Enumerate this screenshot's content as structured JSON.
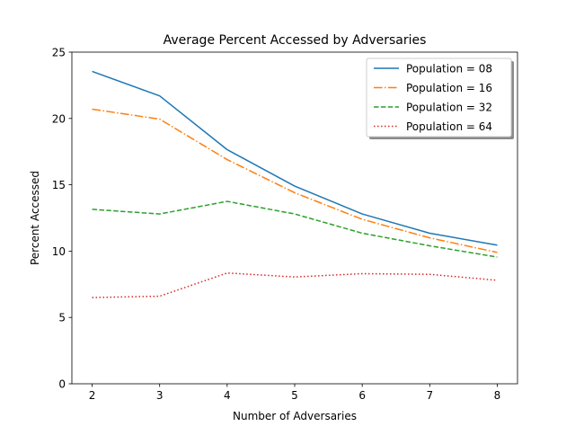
{
  "chart_data": {
    "type": "line",
    "title": "Average Percent Accessed by Adversaries",
    "xlabel": "Number of Adversaries",
    "ylabel": "Percent Accessed",
    "x": [
      2,
      3,
      4,
      5,
      6,
      7,
      8
    ],
    "xlim": [
      1.7,
      8.3
    ],
    "ylim": [
      0,
      25
    ],
    "xticks": [
      "2",
      "3",
      "4",
      "5",
      "6",
      "7",
      "8"
    ],
    "yticks": [
      "0",
      "5",
      "10",
      "15",
      "20",
      "25"
    ],
    "grid": false,
    "legend_position": "top-right",
    "series": [
      {
        "name": "Population = 08",
        "values": [
          23.55,
          21.7,
          17.65,
          14.9,
          12.8,
          11.35,
          10.45
        ],
        "color": "#1f77b4",
        "style": "solid"
      },
      {
        "name": "Population = 16",
        "values": [
          20.7,
          19.95,
          16.9,
          14.4,
          12.4,
          11.0,
          9.9
        ],
        "color": "#ff7f0e",
        "style": "dashdot"
      },
      {
        "name": "Population = 32",
        "values": [
          13.15,
          12.8,
          13.75,
          12.8,
          11.35,
          10.4,
          9.55
        ],
        "color": "#2ca02c",
        "style": "dashed"
      },
      {
        "name": "Population = 64",
        "values": [
          6.5,
          6.6,
          8.35,
          8.05,
          8.3,
          8.25,
          7.8
        ],
        "color": "#d62728",
        "style": "dotted"
      }
    ]
  }
}
